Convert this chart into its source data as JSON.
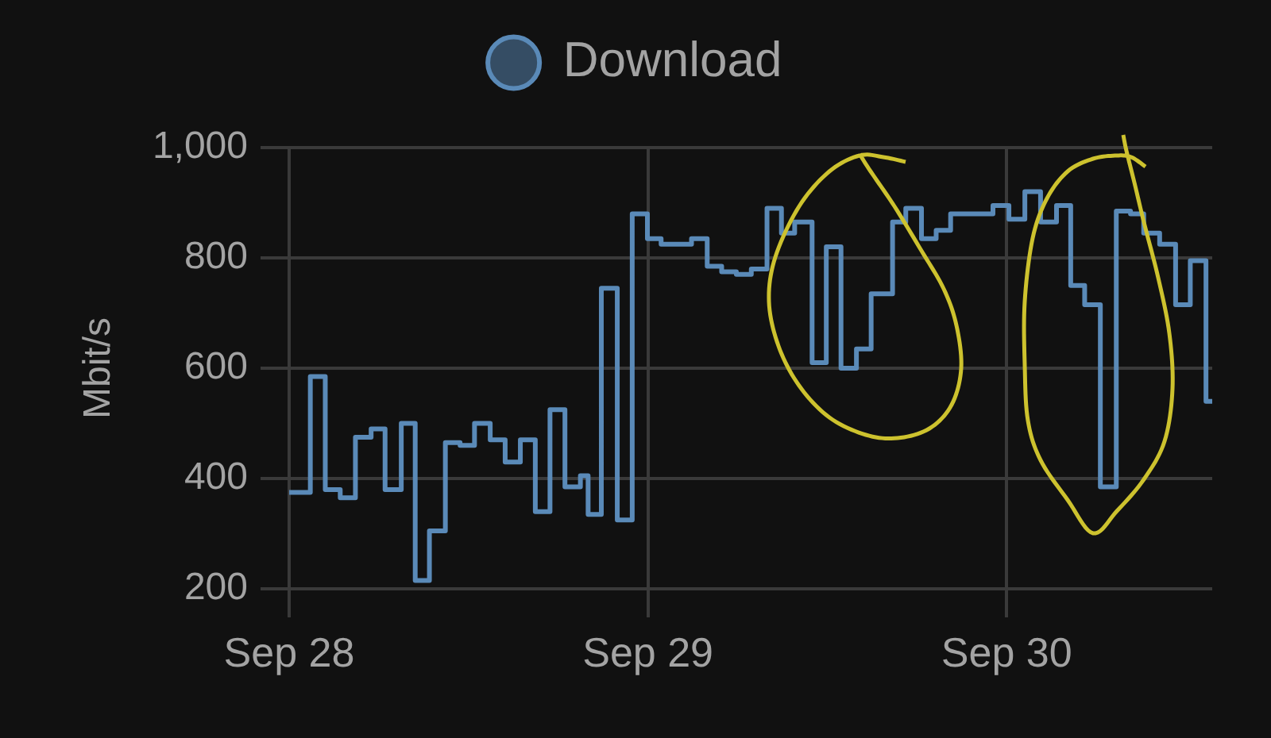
{
  "chart_data": {
    "type": "step",
    "ylabel": "Mbit/s",
    "legend": "top",
    "grid": true,
    "marker": "none",
    "xlim": [
      "--09-28T00:00",
      "--09-30T13:45"
    ],
    "xticks": [
      {
        "value": "--09-28",
        "label": "Sep 28"
      },
      {
        "value": "--09-29",
        "label": "Sep 29"
      },
      {
        "value": "--09-30",
        "label": "Sep 30"
      }
    ],
    "ylim": [
      200,
      1000
    ],
    "yticks": [
      200,
      400,
      600,
      800,
      {
        "value": 1000,
        "label": "1,000"
      }
    ],
    "x": [
      "--09-28T00:00",
      "--09-28T01:25",
      "--09-28T02:25",
      "--09-28T03:25",
      "--09-28T04:26",
      "--09-28T05:29",
      "--09-28T06:25",
      "--09-28T07:30",
      "--09-28T08:26",
      "--09-28T09:23",
      "--09-28T10:27",
      "--09-28T11:26",
      "--09-28T12:24",
      "--09-28T13:27",
      "--09-28T14:27",
      "--09-28T15:28",
      "--09-28T16:28",
      "--09-28T17:27",
      "--09-28T18:27",
      "--09-28T19:29",
      "--09-28T20:00",
      "--09-28T20:53",
      "--09-28T21:57",
      "--09-28T22:57",
      "--09-28T23:58",
      "--09-29T00:53",
      "--09-29T02:55",
      "--09-29T03:58",
      "--09-29T04:56",
      "--09-29T05:55",
      "--09-29T06:55",
      "--09-29T07:58",
      "--09-29T08:56",
      "--09-29T09:49",
      "--09-29T10:59",
      "--09-29T11:56",
      "--09-29T12:55",
      "--09-29T13:57",
      "--09-29T14:56",
      "--09-29T16:22",
      "--09-29T17:15",
      "--09-29T18:18",
      "--09-29T19:17",
      "--09-29T20:15",
      "--09-29T23:05",
      "--09-30T00:09",
      "--09-30T01:13",
      "--09-30T02:16",
      "--09-30T03:20",
      "--09-30T04:17",
      "--09-30T05:13",
      "--09-30T06:16",
      "--09-30T07:20",
      "--09-30T08:17",
      "--09-30T09:10",
      "--09-30T10:14",
      "--09-30T11:18",
      "--09-30T12:17",
      "--09-30T13:20",
      "--09-30T13:45"
    ],
    "series": [
      {
        "name": "Download",
        "color": "#5a8ab8",
        "values": [
          375,
          585,
          380,
          365,
          475,
          490,
          380,
          500,
          215,
          305,
          465,
          460,
          500,
          470,
          430,
          470,
          340,
          525,
          385,
          405,
          335,
          745,
          325,
          880,
          835,
          825,
          835,
          785,
          775,
          770,
          780,
          890,
          845,
          865,
          610,
          820,
          600,
          635,
          735,
          865,
          890,
          835,
          850,
          880,
          895,
          870,
          920,
          865,
          895,
          750,
          715,
          385,
          885,
          880,
          845,
          825,
          715,
          795,
          540,
          540
        ]
      }
    ]
  }
}
